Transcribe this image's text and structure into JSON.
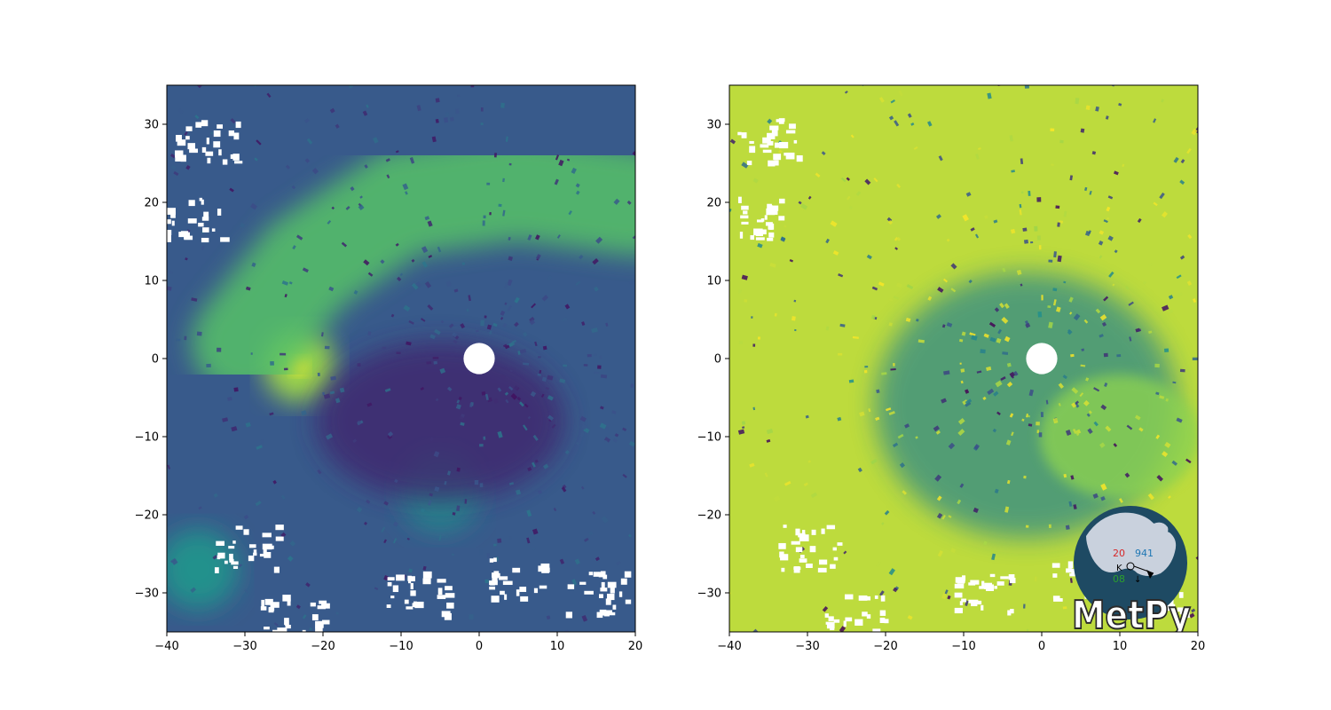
{
  "chart_data": [
    {
      "type": "heatmap",
      "title": "",
      "xlabel": "",
      "ylabel": "",
      "xlim": [
        -40,
        20
      ],
      "ylim": [
        -35,
        35
      ],
      "x_ticks": [
        -40,
        -30,
        -20,
        -10,
        0,
        10,
        20
      ],
      "x_tick_labels": [
        "−40",
        "−30",
        "−20",
        "−10",
        "0",
        "10",
        "20"
      ],
      "y_ticks": [
        -30,
        -20,
        -10,
        0,
        10,
        20,
        30
      ],
      "y_tick_labels": [
        "−30",
        "−20",
        "−10",
        "0",
        "10",
        "20",
        "30"
      ],
      "colormap": "viridis",
      "field": "radar reflectivity",
      "no_data_center_radius": 2,
      "features": [
        {
          "kind": "spiral band core",
          "x": -23,
          "y": -1,
          "level": 0.95
        },
        {
          "kind": "band",
          "path": [
            [
              -30,
              2
            ],
            [
              -22,
              12
            ],
            [
              -10,
              20
            ],
            [
              5,
              22
            ],
            [
              20,
              20
            ]
          ],
          "level": 0.72
        },
        {
          "kind": "cell",
          "x": -36,
          "y": -27,
          "level": 0.6
        },
        {
          "kind": "cell",
          "x": -5,
          "y": -17,
          "level": 0.55
        }
      ],
      "grid": false,
      "legend": "none"
    },
    {
      "type": "heatmap",
      "title": "",
      "xlabel": "",
      "ylabel": "",
      "xlim": [
        -40,
        20
      ],
      "ylim": [
        -35,
        35
      ],
      "x_ticks": [
        -40,
        -30,
        -20,
        -10,
        0,
        10,
        20
      ],
      "x_tick_labels": [
        "−40",
        "−30",
        "−20",
        "−10",
        "0",
        "10",
        "20"
      ],
      "y_ticks": [
        -30,
        -20,
        -10,
        0,
        10,
        20,
        30
      ],
      "y_tick_labels": [
        "−30",
        "−20",
        "−10",
        "0",
        "10",
        "20",
        "30"
      ],
      "colormap": "viridis",
      "field": "correlation coefficient",
      "no_data_center_radius": 2,
      "dominant_level": 0.9,
      "grid": false,
      "legend": "none"
    }
  ],
  "colors": {
    "viridis_low": "#440154",
    "viridis_mid_low": "#3b528b",
    "viridis_mid": "#21918c",
    "viridis_mid_high": "#5ec962",
    "viridis_high": "#fde725",
    "logo_globe_ocean": "#1e4a63",
    "logo_globe_land": "#c9d1dd",
    "logo_text": "#ffffff",
    "logo_text_outline": "#2b2b2b",
    "logo_red": "#d62728",
    "logo_blue": "#1f77b4",
    "logo_green": "#2ca02c"
  },
  "logo": {
    "text": "MetPy",
    "station_temperature": "20",
    "station_pressure": "941",
    "station_dewpoint": "08"
  }
}
